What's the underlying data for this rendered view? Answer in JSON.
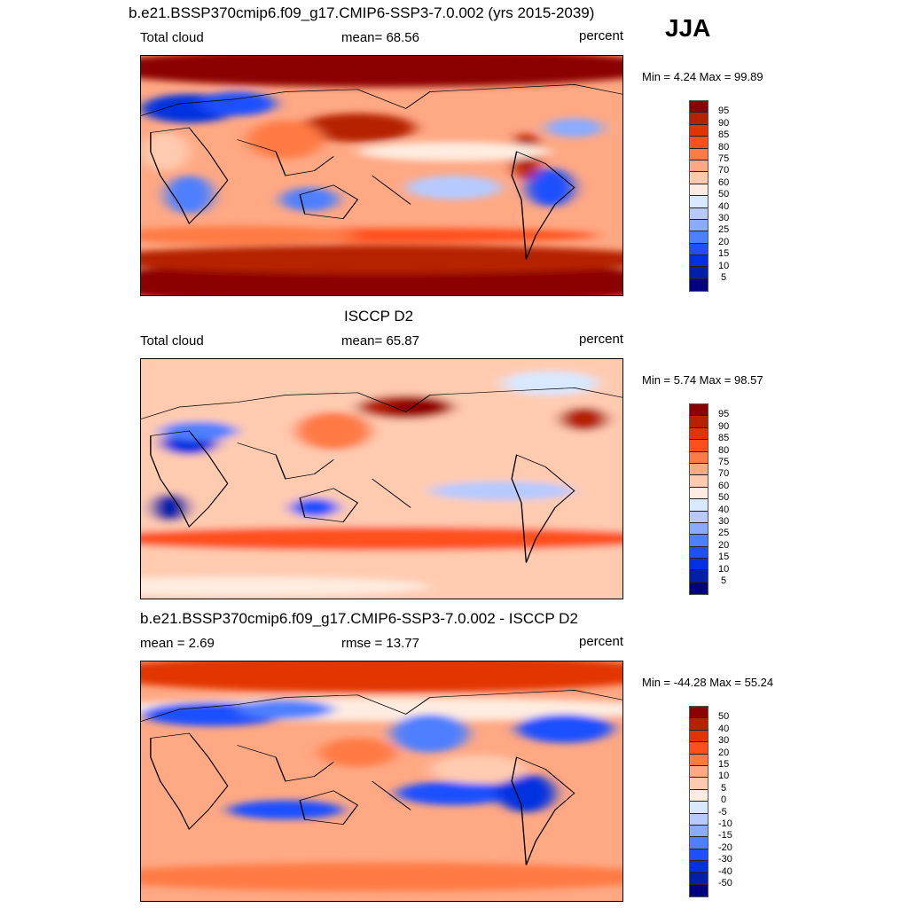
{
  "jja_label": "JJA",
  "panels": [
    {
      "title": "b.e21.BSSP370cmip6.f09_g17.CMIP6-SSP3-7.0.002 (yrs 2015-2039)",
      "left": "Total cloud",
      "center": "mean=  68.56",
      "right": "percent",
      "minmax": "Min =   4.24 Max =  99.89",
      "levels": [
        "95",
        "90",
        "85",
        "80",
        "75",
        "70",
        "60",
        "50",
        "40",
        "30",
        "25",
        "20",
        "15",
        "10",
        "5"
      ]
    },
    {
      "title": "ISCCP D2",
      "left": "Total cloud",
      "center": "mean=  65.87",
      "right": "percent",
      "minmax": "Min =   5.74 Max =  98.57",
      "levels": [
        "95",
        "90",
        "85",
        "80",
        "75",
        "70",
        "60",
        "50",
        "40",
        "30",
        "25",
        "20",
        "15",
        "10",
        "5"
      ]
    },
    {
      "title": "b.e21.BSSP370cmip6.f09_g17.CMIP6-SSP3-7.0.002 - ISCCP D2",
      "left": "mean =   2.69",
      "center": "rmse =  13.77",
      "right": "percent",
      "minmax": "Min = -44.28 Max =  55.24",
      "levels": [
        "50",
        "40",
        "30",
        "20",
        "15",
        "10",
        "5",
        "0",
        "-5",
        "-10",
        "-15",
        "-20",
        "-30",
        "-40",
        "-50"
      ]
    }
  ],
  "colormap": [
    "#8b0000",
    "#b52200",
    "#e23400",
    "#ff4f1c",
    "#ff7a44",
    "#ffa884",
    "#ffcbb0",
    "#ffece0",
    "#d8e8ff",
    "#b6caff",
    "#8aabff",
    "#4d7fff",
    "#1f4fff",
    "#0330e0",
    "#0020aa",
    "#000080"
  ]
}
